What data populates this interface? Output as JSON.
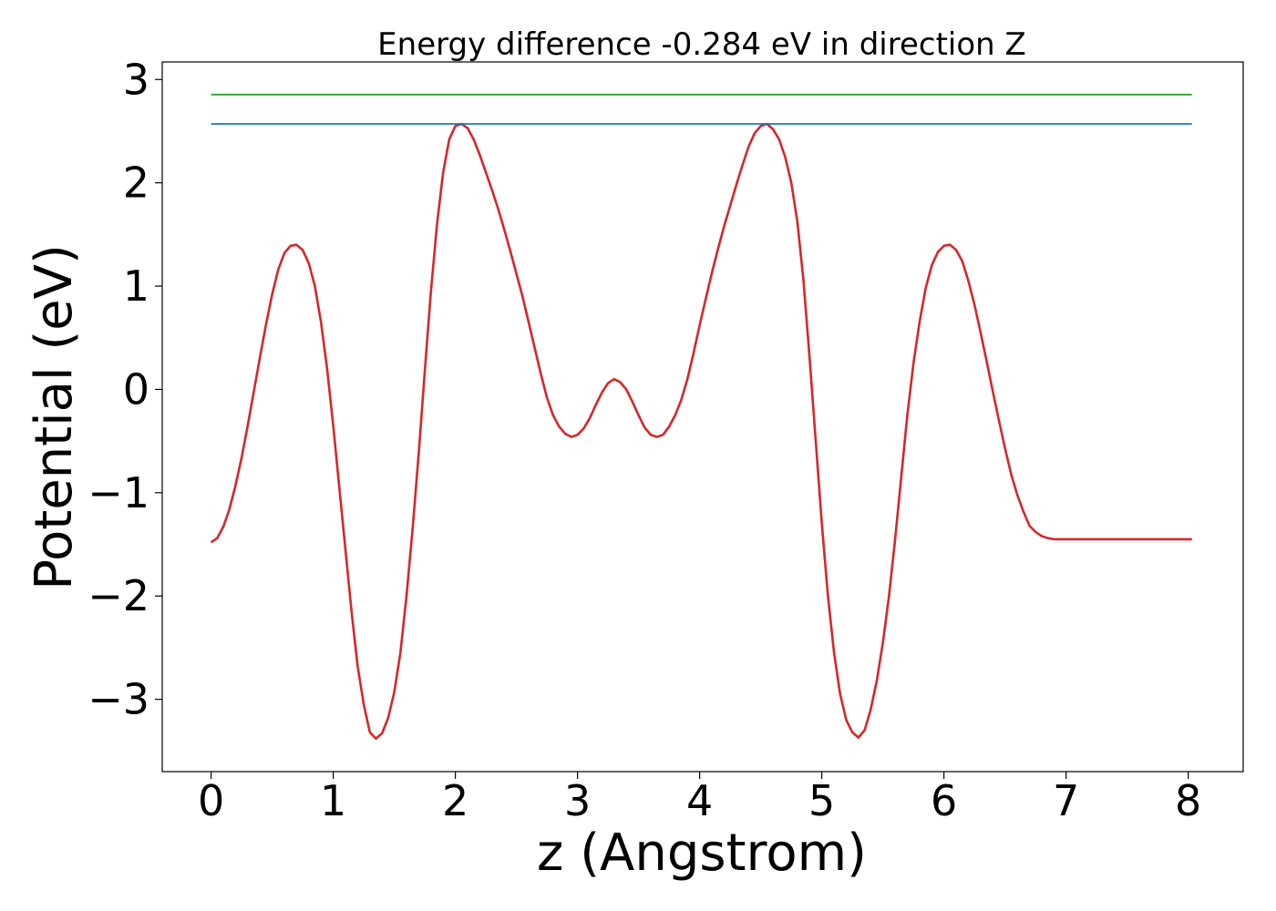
{
  "chart_data": {
    "type": "line",
    "title": "Energy difference -0.284 eV in direction Z",
    "xlabel": "z (Angstrom)",
    "ylabel": "Potential (eV)",
    "xlim": [
      -0.4,
      8.45
    ],
    "ylim": [
      -3.7,
      3.17
    ],
    "xticks": [
      0,
      1,
      2,
      3,
      4,
      5,
      6,
      7,
      8
    ],
    "xtick_labels": [
      "0",
      "1",
      "2",
      "3",
      "4",
      "5",
      "6",
      "7",
      "8"
    ],
    "yticks": [
      3,
      2,
      1,
      0,
      -1,
      -2,
      -3
    ],
    "ytick_labels": [
      "3",
      "2",
      "1",
      "0",
      "−1",
      "−2",
      "−3"
    ],
    "grid": false,
    "legend": "none",
    "series": [
      {
        "color": "#d62728",
        "x": [
          0.0,
          0.05,
          0.1,
          0.15,
          0.2,
          0.25,
          0.3,
          0.35,
          0.4,
          0.45,
          0.5,
          0.55,
          0.6,
          0.65,
          0.7,
          0.75,
          0.8,
          0.85,
          0.9,
          0.95,
          1.0,
          1.05,
          1.1,
          1.15,
          1.2,
          1.25,
          1.3,
          1.35,
          1.4,
          1.45,
          1.5,
          1.55,
          1.6,
          1.65,
          1.7,
          1.75,
          1.8,
          1.85,
          1.9,
          1.95,
          2.0,
          2.05,
          2.1,
          2.15,
          2.2,
          2.25,
          2.3,
          2.35,
          2.4,
          2.45,
          2.5,
          2.55,
          2.6,
          2.65,
          2.7,
          2.75,
          2.8,
          2.85,
          2.9,
          2.95,
          3.0,
          3.05,
          3.1,
          3.15,
          3.2,
          3.25,
          3.3,
          3.35,
          3.4,
          3.45,
          3.5,
          3.55,
          3.6,
          3.65,
          3.7,
          3.75,
          3.8,
          3.85,
          3.9,
          3.95,
          4.0,
          4.05,
          4.1,
          4.15,
          4.2,
          4.25,
          4.3,
          4.35,
          4.4,
          4.45,
          4.5,
          4.55,
          4.6,
          4.65,
          4.7,
          4.75,
          4.8,
          4.85,
          4.9,
          4.95,
          5.0,
          5.05,
          5.1,
          5.15,
          5.2,
          5.25,
          5.3,
          5.35,
          5.4,
          5.45,
          5.5,
          5.55,
          5.6,
          5.65,
          5.7,
          5.75,
          5.8,
          5.85,
          5.9,
          5.95,
          6.0,
          6.05,
          6.1,
          6.15,
          6.2,
          6.25,
          6.3,
          6.35,
          6.4,
          6.45,
          6.5,
          6.55,
          6.6,
          6.65,
          6.7,
          6.75,
          6.8,
          6.85,
          6.9,
          6.95,
          7.0,
          7.05,
          7.1,
          7.15,
          7.2,
          7.25,
          7.3,
          7.35,
          7.4,
          7.45,
          7.5,
          7.55,
          7.6,
          7.65,
          7.7,
          7.75,
          7.8,
          7.85,
          7.9,
          7.95,
          8.0,
          8.03
        ],
        "y": [
          -1.48,
          -1.44,
          -1.33,
          -1.16,
          -0.93,
          -0.66,
          -0.35,
          -0.02,
          0.31,
          0.63,
          0.92,
          1.16,
          1.32,
          1.39,
          1.4,
          1.35,
          1.22,
          1.0,
          0.65,
          0.2,
          -0.35,
          -0.95,
          -1.55,
          -2.15,
          -2.68,
          -3.05,
          -3.32,
          -3.38,
          -3.33,
          -3.18,
          -2.93,
          -2.55,
          -2.0,
          -1.35,
          -0.62,
          0.18,
          0.95,
          1.6,
          2.1,
          2.42,
          2.55,
          2.57,
          2.53,
          2.42,
          2.27,
          2.1,
          1.93,
          1.75,
          1.55,
          1.34,
          1.12,
          0.9,
          0.65,
          0.4,
          0.15,
          -0.08,
          -0.25,
          -0.36,
          -0.43,
          -0.46,
          -0.44,
          -0.38,
          -0.28,
          -0.15,
          -0.03,
          0.06,
          0.1,
          0.07,
          0.0,
          -0.12,
          -0.25,
          -0.37,
          -0.44,
          -0.46,
          -0.44,
          -0.36,
          -0.25,
          -0.1,
          0.1,
          0.35,
          0.62,
          0.88,
          1.13,
          1.36,
          1.58,
          1.78,
          1.98,
          2.17,
          2.35,
          2.48,
          2.55,
          2.57,
          2.52,
          2.42,
          2.25,
          2.0,
          1.62,
          1.05,
          0.3,
          -0.5,
          -1.3,
          -2.0,
          -2.55,
          -2.95,
          -3.2,
          -3.32,
          -3.37,
          -3.3,
          -3.1,
          -2.82,
          -2.45,
          -2.0,
          -1.45,
          -0.85,
          -0.25,
          0.25,
          0.65,
          0.98,
          1.2,
          1.33,
          1.39,
          1.4,
          1.35,
          1.24,
          1.05,
          0.82,
          0.55,
          0.27,
          -0.02,
          -0.3,
          -0.57,
          -0.82,
          -1.02,
          -1.18,
          -1.32,
          -1.38,
          -1.42,
          -1.44,
          -1.45,
          -1.45,
          -1.45,
          -1.45,
          -1.45,
          -1.45,
          -1.45,
          -1.45,
          -1.45,
          -1.45,
          -1.45,
          -1.45,
          -1.45,
          -1.45,
          -1.45,
          -1.45,
          -1.45,
          -1.45,
          -1.45,
          -1.45,
          -1.45,
          -1.45,
          -1.45,
          -1.45
        ]
      },
      {
        "color": "#2ca02c",
        "x": [
          0.0,
          8.03
        ],
        "y": [
          2.854,
          2.854
        ]
      },
      {
        "color": "#1f77b4",
        "x": [
          0.0,
          8.03
        ],
        "y": [
          2.57,
          2.57
        ]
      }
    ]
  }
}
